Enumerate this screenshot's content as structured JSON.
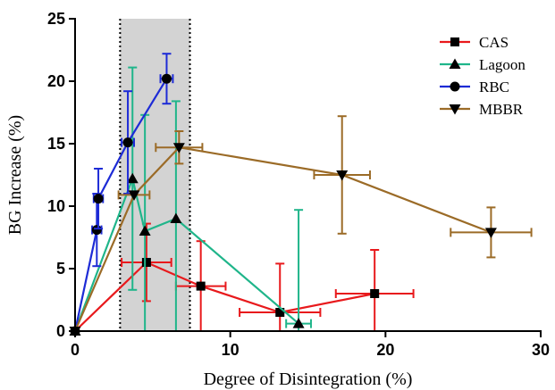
{
  "chart_data": {
    "type": "scatter",
    "xlabel": "Degree of Disintegration (%)",
    "ylabel": "BG Increase (%)",
    "xlim": [
      0,
      30
    ],
    "ylim": [
      0,
      25
    ],
    "xticks": [
      0,
      10,
      20,
      30
    ],
    "yticks": [
      0,
      5,
      10,
      15,
      20,
      25
    ],
    "grid": false,
    "legend_position": "top-right",
    "shaded_band": {
      "x": [
        2.9,
        7.4
      ],
      "color": "#d3d3d3",
      "border": "dotted"
    },
    "series": [
      {
        "name": "CAS",
        "color": "#e8191c",
        "marker": "square",
        "points": [
          {
            "x": 0,
            "y": 0
          },
          {
            "x": 4.6,
            "y": 5.5,
            "xerr": 1.6,
            "yerr": 3.1
          },
          {
            "x": 8.1,
            "y": 3.6,
            "xerr": 1.6,
            "yerr": 3.6
          },
          {
            "x": 13.2,
            "y": 1.5,
            "xerr": 2.6,
            "yerr": 3.9
          },
          {
            "x": 19.3,
            "y": 3.0,
            "xerr": 2.5,
            "yerr": 3.5
          }
        ]
      },
      {
        "name": "Lagoon",
        "color": "#1fb58a",
        "marker": "triangle-up",
        "points": [
          {
            "x": 0,
            "y": 0
          },
          {
            "x": 3.7,
            "y": 12.2,
            "yerr": 8.9
          },
          {
            "x": 4.5,
            "y": 8.0,
            "yerr": 9.3
          },
          {
            "x": 6.5,
            "y": 9.0,
            "yerr": 9.4
          },
          {
            "x": 14.4,
            "y": 0.6,
            "xerr": 0.8,
            "yerr": 9.1
          }
        ]
      },
      {
        "name": "RBC",
        "color": "#1d2bd6",
        "marker": "circle",
        "points": [
          {
            "x": 0,
            "y": 0
          },
          {
            "x": 1.4,
            "y": 8.1,
            "xerr": 0.3,
            "yerr": 2.9
          },
          {
            "x": 1.5,
            "y": 10.6,
            "xerr": 0.3,
            "yerr": 2.4
          },
          {
            "x": 3.4,
            "y": 15.1,
            "xerr": 0.4,
            "yerr": 4.1
          },
          {
            "x": 5.9,
            "y": 20.2,
            "xerr": 0.4,
            "yerr": 2.0
          }
        ]
      },
      {
        "name": "MBBR",
        "color": "#9b6b27",
        "marker": "triangle-down",
        "points": [
          {
            "x": 0,
            "y": 0
          },
          {
            "x": 3.8,
            "y": 10.9,
            "xerr": 1.0
          },
          {
            "x": 6.7,
            "y": 14.7,
            "xerr": 1.5,
            "yerr": 1.3
          },
          {
            "x": 17.2,
            "y": 12.5,
            "xerr": 1.8,
            "yerr": 4.7
          },
          {
            "x": 26.8,
            "y": 7.9,
            "xerr": 2.6,
            "yerr": 2.0
          }
        ]
      }
    ]
  }
}
